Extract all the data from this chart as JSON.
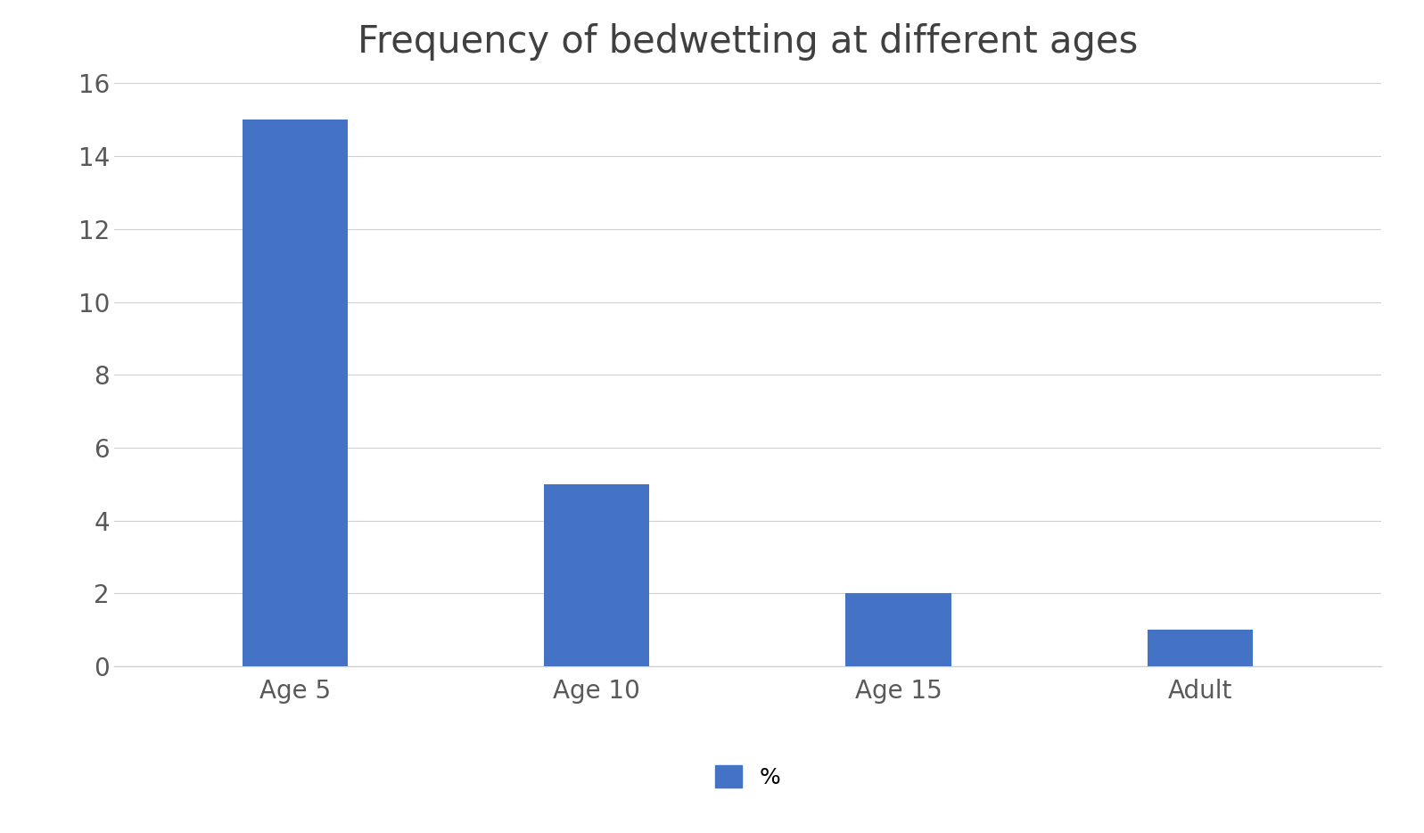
{
  "title": "Frequency of bedwetting at different ages",
  "categories": [
    "Age 5",
    "Age 10",
    "Age 15",
    "Adult"
  ],
  "values": [
    15,
    5,
    2,
    1
  ],
  "bar_color": "#4472C4",
  "ylim": [
    0,
    16
  ],
  "yticks": [
    0,
    2,
    4,
    6,
    8,
    10,
    12,
    14,
    16
  ],
  "legend_label": "%",
  "background_color": "#ffffff",
  "plot_background_color": "#ffffff",
  "title_fontsize": 30,
  "tick_fontsize": 20,
  "legend_fontsize": 18,
  "bar_width": 0.35,
  "grid_color": "#d0d0d0"
}
